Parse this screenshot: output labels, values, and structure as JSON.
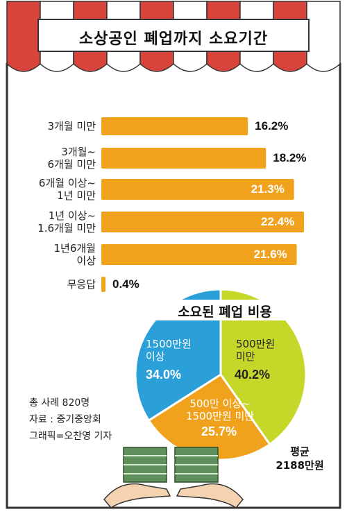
{
  "title": "소상공인 폐업까지 소요기간",
  "chart_data": [
    {
      "type": "bar",
      "orientation": "horizontal",
      "title": "소상공인 폐업까지 소요기간",
      "categories": [
        "3개월 미만",
        "3개월~\n6개월 미만",
        "6개월 이상~\n1년 미만",
        "1년 이상~\n1.6개월 미만",
        "1년6개월\n이상",
        "무응답"
      ],
      "values": [
        16.2,
        18.2,
        21.3,
        22.4,
        21.6,
        0.4
      ],
      "value_labels": [
        "16.2%",
        "18.2%",
        "21.3%",
        "22.4%",
        "21.6%",
        "0.4%"
      ],
      "bar_color": "#f0a21c"
    },
    {
      "type": "pie",
      "title": "소요된 폐업 비용",
      "slices": [
        {
          "label": "500만원\n미만",
          "value": 40.2,
          "pct_label": "40.2%",
          "color": "#c5d82a"
        },
        {
          "label": "500만 이상~\n1500만원 미만",
          "value": 25.7,
          "pct_label": "25.7%",
          "color": "#f0a21c"
        },
        {
          "label": "1500만원\n이상",
          "value": 34.0,
          "pct_label": "34.0%",
          "color": "#2a9fd8"
        }
      ],
      "average_label": "평균",
      "average_value": "2188만원"
    }
  ],
  "notes": [
    "총 사례 820명",
    "자료 : 중기중앙회",
    "그래픽=오찬영 기자"
  ],
  "colors": {
    "awning_red": "#d9453c",
    "awning_white": "#ffffff",
    "border": "#333333"
  }
}
